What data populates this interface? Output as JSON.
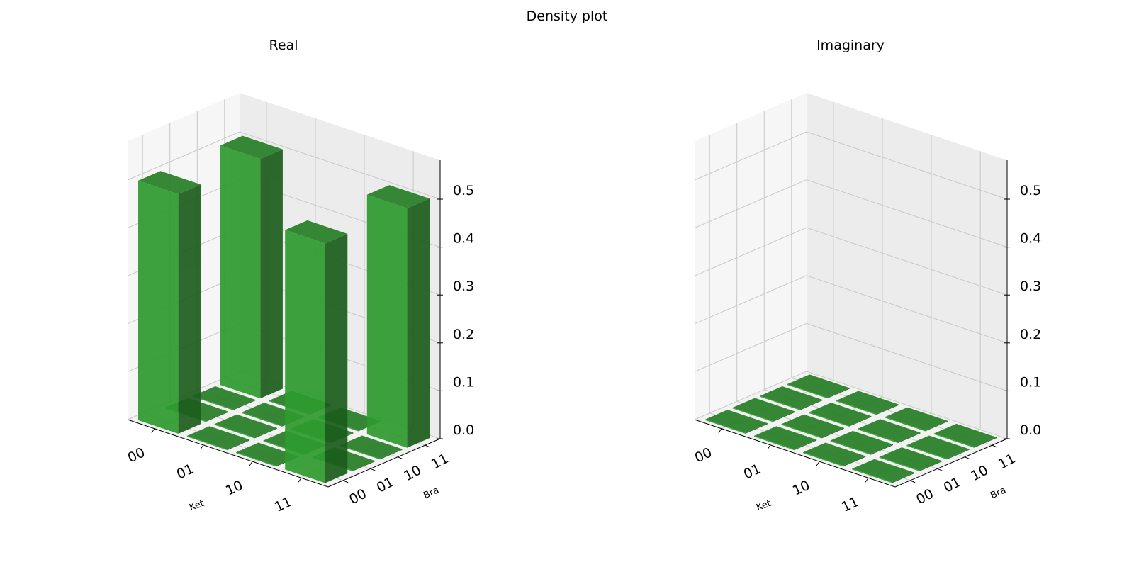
{
  "figure_title": "Density plot",
  "chart_data": [
    {
      "type": "bar3d",
      "title": "Real",
      "xlabel": "Ket",
      "ylabel": "Bra",
      "x_ticks": [
        "00",
        "01",
        "10",
        "11"
      ],
      "y_ticks": [
        "00",
        "01",
        "10",
        "11"
      ],
      "z_ticks": [
        "0.0",
        "0.1",
        "0.2",
        "0.3",
        "0.4",
        "0.5"
      ],
      "zlim": [
        0,
        0.5
      ],
      "bar_color": "#2e9b2e",
      "values": [
        [
          0.5,
          0.0,
          0.0,
          0.5
        ],
        [
          0.0,
          0.0,
          0.0,
          0.0
        ],
        [
          0.0,
          0.0,
          0.0,
          0.0
        ],
        [
          0.5,
          0.0,
          0.0,
          0.5
        ]
      ]
    },
    {
      "type": "bar3d",
      "title": "Imaginary",
      "xlabel": "Ket",
      "ylabel": "Bra",
      "x_ticks": [
        "00",
        "01",
        "10",
        "11"
      ],
      "y_ticks": [
        "00",
        "01",
        "10",
        "11"
      ],
      "z_ticks": [
        "0.0",
        "0.1",
        "0.2",
        "0.3",
        "0.4",
        "0.5"
      ],
      "zlim": [
        0,
        0.5
      ],
      "bar_color": "#2e9b2e",
      "values": [
        [
          0,
          0,
          0,
          0
        ],
        [
          0,
          0,
          0,
          0
        ],
        [
          0,
          0,
          0,
          0
        ],
        [
          0,
          0,
          0,
          0
        ]
      ]
    }
  ]
}
